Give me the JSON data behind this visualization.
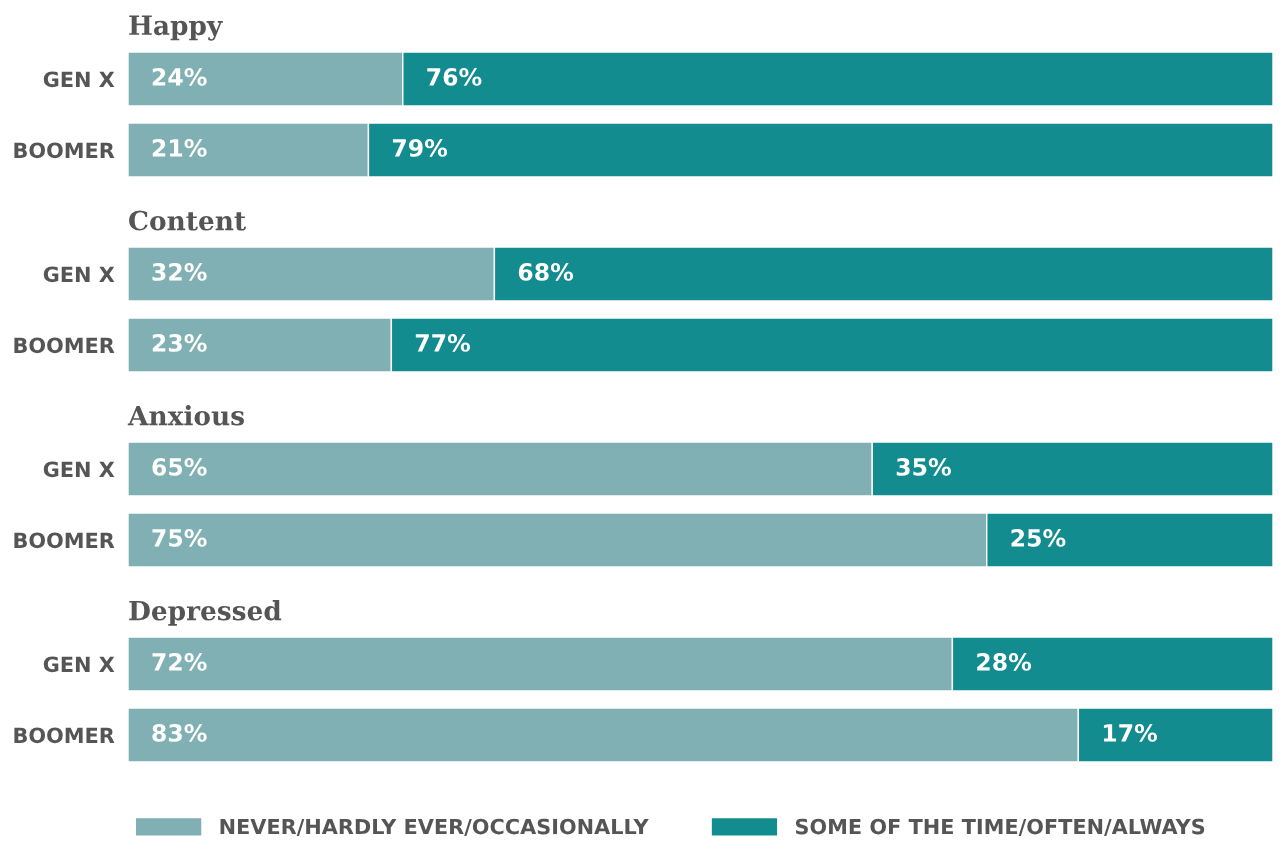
{
  "chart_data": [
    {
      "type": "bar",
      "title": "Happy",
      "orientation": "horizontal",
      "stacked": true,
      "categories": [
        "GEN X",
        "BOOMER"
      ],
      "tick_labels": "y",
      "grid": false,
      "series": [
        {
          "color": "#80b0b3",
          "values": [
            24,
            21
          ],
          "value_labels": [
            "24%",
            "21%"
          ]
        },
        {
          "color": "#138c8f",
          "values": [
            76,
            79
          ],
          "value_labels": [
            "76%",
            "79%"
          ]
        }
      ]
    },
    {
      "type": "bar",
      "title": "Content",
      "orientation": "horizontal",
      "stacked": true,
      "categories": [
        "GEN X",
        "BOOMER"
      ],
      "tick_labels": "y",
      "grid": false,
      "series": [
        {
          "color": "#80b0b3",
          "values": [
            32,
            23
          ],
          "value_labels": [
            "32%",
            "23%"
          ]
        },
        {
          "color": "#138c8f",
          "values": [
            68,
            77
          ],
          "value_labels": [
            "68%",
            "77%"
          ]
        }
      ]
    },
    {
      "type": "bar",
      "title": "Anxious",
      "orientation": "horizontal",
      "stacked": true,
      "categories": [
        "GEN X",
        "BOOMER"
      ],
      "tick_labels": "y",
      "grid": false,
      "series": [
        {
          "color": "#80b0b3",
          "values": [
            65,
            75
          ],
          "value_labels": [
            "65%",
            "75%"
          ]
        },
        {
          "color": "#138c8f",
          "values": [
            35,
            25
          ],
          "value_labels": [
            "35%",
            "25%"
          ]
        }
      ]
    },
    {
      "type": "bar",
      "title": "Depressed",
      "orientation": "horizontal",
      "stacked": true,
      "categories": [
        "GEN X",
        "BOOMER"
      ],
      "tick_labels": "y",
      "grid": false,
      "legend": "bottom",
      "series": [
        {
          "name": "NEVER/HARDLY EVER/OCCASIONALLY",
          "color": "#80b0b3",
          "values": [
            72,
            83
          ],
          "value_labels": [
            "72%",
            "83%"
          ]
        },
        {
          "name": "SOME OF THE TIME/OFTEN/ALWAYS",
          "color": "#138c8f",
          "values": [
            28,
            17
          ],
          "value_labels": [
            "28%",
            "17%"
          ]
        }
      ]
    }
  ]
}
